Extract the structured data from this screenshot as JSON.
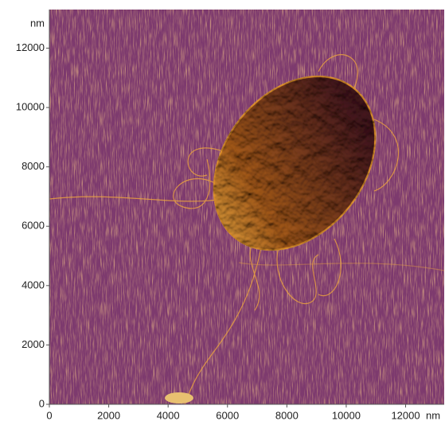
{
  "image": {
    "xlim": [
      0,
      13300
    ],
    "ylim": [
      0,
      13300
    ],
    "xticks": [
      0,
      2000,
      4000,
      6000,
      8000,
      10000,
      12000
    ],
    "yticks": [
      0,
      2000,
      4000,
      6000,
      8000,
      10000,
      12000
    ],
    "x_unit": "nm",
    "y_unit": "nm"
  }
}
